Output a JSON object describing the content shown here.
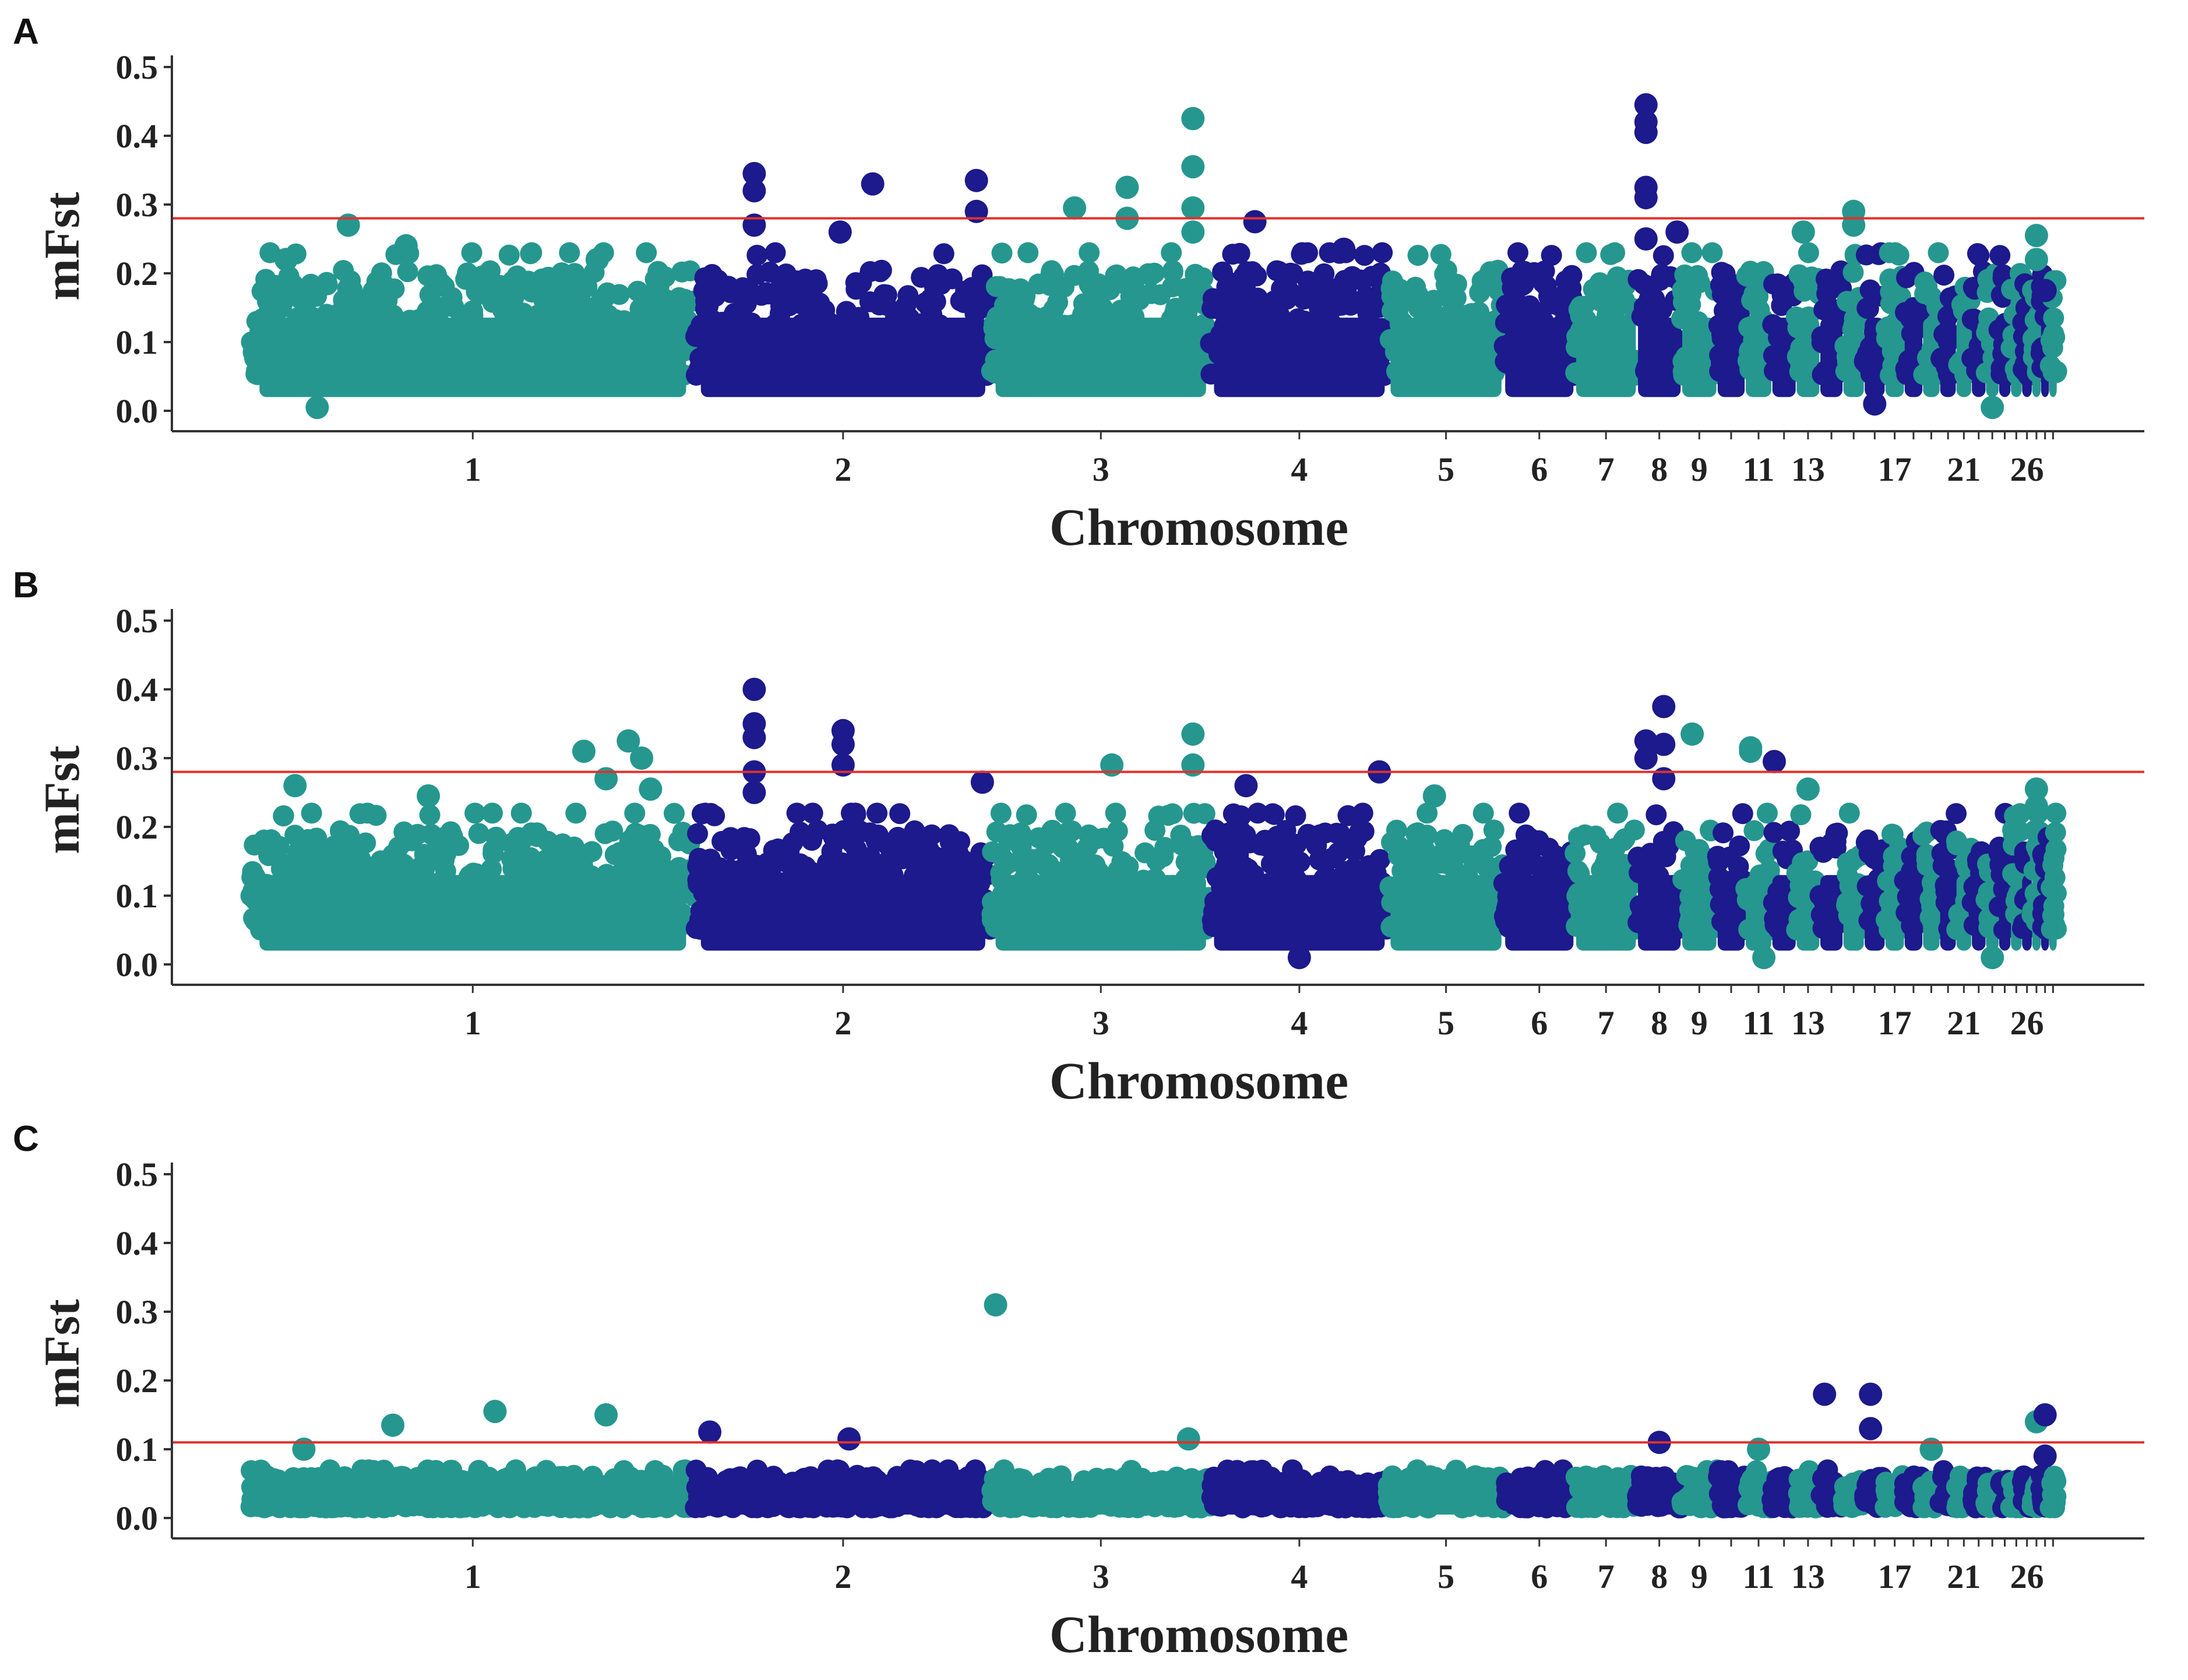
{
  "chart_data": [
    {
      "panel": "A",
      "type": "scatter",
      "subtype": "manhattan",
      "xlabel": "Chromosome",
      "ylabel": "mFst",
      "ylim": [
        0.0,
        0.5
      ],
      "yticks": [
        "0.0",
        "0.1",
        "0.2",
        "0.3",
        "0.4",
        "0.5"
      ],
      "x_tick_labels": [
        "1",
        "2",
        "3",
        "4",
        "5",
        "6",
        "7",
        "8",
        "9",
        "11",
        "13",
        "17",
        "21",
        "26"
      ],
      "threshold": 0.28,
      "band_min": 0.02,
      "band_max": 0.23,
      "colors": [
        "#25978f",
        "#1c1a8c"
      ],
      "threshold_color": "#e0312b",
      "peaks": [
        {
          "chrom": 1,
          "pos": 0.08,
          "y": 0.22
        },
        {
          "chrom": 1,
          "pos": 0.22,
          "y": 0.27
        },
        {
          "chrom": 1,
          "pos": 0.35,
          "y": 0.24
        },
        {
          "chrom": 1,
          "pos": 0.78,
          "y": 0.22
        },
        {
          "chrom": 2,
          "pos": 0.2,
          "y": 0.345
        },
        {
          "chrom": 2,
          "pos": 0.2,
          "y": 0.32
        },
        {
          "chrom": 2,
          "pos": 0.2,
          "y": 0.27
        },
        {
          "chrom": 2,
          "pos": 0.6,
          "y": 0.33
        },
        {
          "chrom": 2,
          "pos": 0.49,
          "y": 0.26
        },
        {
          "chrom": 2,
          "pos": 0.95,
          "y": 0.335
        },
        {
          "chrom": 2,
          "pos": 0.95,
          "y": 0.29
        },
        {
          "chrom": 3,
          "pos": 0.38,
          "y": 0.295
        },
        {
          "chrom": 3,
          "pos": 0.62,
          "y": 0.325
        },
        {
          "chrom": 3,
          "pos": 0.62,
          "y": 0.28
        },
        {
          "chrom": 3,
          "pos": 0.92,
          "y": 0.425
        },
        {
          "chrom": 3,
          "pos": 0.92,
          "y": 0.355
        },
        {
          "chrom": 3,
          "pos": 0.92,
          "y": 0.295
        },
        {
          "chrom": 3,
          "pos": 0.92,
          "y": 0.26
        },
        {
          "chrom": 4,
          "pos": 0.25,
          "y": 0.275
        },
        {
          "chrom": 4,
          "pos": 0.75,
          "y": 0.235
        },
        {
          "chrom": 8,
          "pos": 0.2,
          "y": 0.445
        },
        {
          "chrom": 8,
          "pos": 0.2,
          "y": 0.42
        },
        {
          "chrom": 8,
          "pos": 0.2,
          "y": 0.405
        },
        {
          "chrom": 8,
          "pos": 0.2,
          "y": 0.325
        },
        {
          "chrom": 8,
          "pos": 0.2,
          "y": 0.31
        },
        {
          "chrom": 8,
          "pos": 0.2,
          "y": 0.25
        },
        {
          "chrom": 8,
          "pos": 0.9,
          "y": 0.26
        },
        {
          "chrom": 13,
          "pos": 0.3,
          "y": 0.26
        },
        {
          "chrom": 15,
          "pos": 0.5,
          "y": 0.29
        },
        {
          "chrom": 15,
          "pos": 0.5,
          "y": 0.27
        },
        {
          "chrom": 27,
          "pos": 0.5,
          "y": 0.255
        },
        {
          "chrom": 27,
          "pos": 0.5,
          "y": 0.22
        },
        {
          "chrom": 28,
          "pos": 0.5,
          "y": 0.175
        }
      ],
      "lows": [
        {
          "chrom": 16,
          "pos": 0.5,
          "y": 0.01
        },
        {
          "chrom": 23,
          "pos": 0.5,
          "y": 0.005
        },
        {
          "chrom": 1,
          "pos": 0.15,
          "y": 0.005
        }
      ]
    },
    {
      "panel": "B",
      "type": "scatter",
      "subtype": "manhattan",
      "xlabel": "Chromosome",
      "ylabel": "mFst",
      "ylim": [
        0.0,
        0.5
      ],
      "yticks": [
        "0.0",
        "0.1",
        "0.2",
        "0.3",
        "0.4",
        "0.5"
      ],
      "x_tick_labels": [
        "1",
        "2",
        "3",
        "4",
        "5",
        "6",
        "7",
        "8",
        "9",
        "11",
        "13",
        "17",
        "21",
        "26"
      ],
      "threshold": 0.28,
      "band_min": 0.02,
      "band_max": 0.22,
      "colors": [
        "#25978f",
        "#1c1a8c"
      ],
      "threshold_color": "#e0312b",
      "peaks": [
        {
          "chrom": 1,
          "pos": 0.1,
          "y": 0.26
        },
        {
          "chrom": 1,
          "pos": 0.4,
          "y": 0.245
        },
        {
          "chrom": 1,
          "pos": 0.75,
          "y": 0.31
        },
        {
          "chrom": 1,
          "pos": 0.85,
          "y": 0.325
        },
        {
          "chrom": 1,
          "pos": 0.88,
          "y": 0.3
        },
        {
          "chrom": 1,
          "pos": 0.8,
          "y": 0.27
        },
        {
          "chrom": 1,
          "pos": 0.9,
          "y": 0.255
        },
        {
          "chrom": 2,
          "pos": 0.2,
          "y": 0.4
        },
        {
          "chrom": 2,
          "pos": 0.2,
          "y": 0.35
        },
        {
          "chrom": 2,
          "pos": 0.2,
          "y": 0.33
        },
        {
          "chrom": 2,
          "pos": 0.2,
          "y": 0.28
        },
        {
          "chrom": 2,
          "pos": 0.2,
          "y": 0.25
        },
        {
          "chrom": 2,
          "pos": 0.5,
          "y": 0.34
        },
        {
          "chrom": 2,
          "pos": 0.5,
          "y": 0.32
        },
        {
          "chrom": 2,
          "pos": 0.5,
          "y": 0.29
        },
        {
          "chrom": 2,
          "pos": 0.97,
          "y": 0.265
        },
        {
          "chrom": 3,
          "pos": 0.55,
          "y": 0.29
        },
        {
          "chrom": 3,
          "pos": 0.92,
          "y": 0.335
        },
        {
          "chrom": 3,
          "pos": 0.92,
          "y": 0.29
        },
        {
          "chrom": 4,
          "pos": 0.2,
          "y": 0.26
        },
        {
          "chrom": 4,
          "pos": 0.95,
          "y": 0.28
        },
        {
          "chrom": 5,
          "pos": 0.4,
          "y": 0.245
        },
        {
          "chrom": 8,
          "pos": 0.2,
          "y": 0.325
        },
        {
          "chrom": 8,
          "pos": 0.2,
          "y": 0.3
        },
        {
          "chrom": 8,
          "pos": 0.6,
          "y": 0.375
        },
        {
          "chrom": 8,
          "pos": 0.6,
          "y": 0.32
        },
        {
          "chrom": 8,
          "pos": 0.6,
          "y": 0.27
        },
        {
          "chrom": 9,
          "pos": 0.3,
          "y": 0.335
        },
        {
          "chrom": 11,
          "pos": 0.2,
          "y": 0.315
        },
        {
          "chrom": 11,
          "pos": 0.2,
          "y": 0.31
        },
        {
          "chrom": 12,
          "pos": 0.1,
          "y": 0.295
        },
        {
          "chrom": 13,
          "pos": 0.5,
          "y": 0.255
        },
        {
          "chrom": 27,
          "pos": 0.5,
          "y": 0.255
        },
        {
          "chrom": 27,
          "pos": 0.5,
          "y": 0.23
        }
      ],
      "lows": [
        {
          "chrom": 4,
          "pos": 0.5,
          "y": 0.01
        },
        {
          "chrom": 11,
          "pos": 0.7,
          "y": 0.01
        },
        {
          "chrom": 23,
          "pos": 0.5,
          "y": 0.01
        }
      ]
    },
    {
      "panel": "C",
      "type": "scatter",
      "subtype": "manhattan",
      "xlabel": "Chromosome",
      "ylabel": "mFst",
      "ylim": [
        0.0,
        0.5
      ],
      "yticks": [
        "0.0",
        "0.1",
        "0.2",
        "0.3",
        "0.4",
        "0.5"
      ],
      "x_tick_labels": [
        "1",
        "2",
        "3",
        "4",
        "5",
        "6",
        "7",
        "8",
        "9",
        "11",
        "13",
        "17",
        "21",
        "26"
      ],
      "threshold": 0.11,
      "band_min": 0.005,
      "band_max": 0.07,
      "colors": [
        "#25978f",
        "#1c1a8c"
      ],
      "threshold_color": "#e0312b",
      "peaks": [
        {
          "chrom": 1,
          "pos": 0.12,
          "y": 0.1
        },
        {
          "chrom": 1,
          "pos": 0.32,
          "y": 0.135
        },
        {
          "chrom": 1,
          "pos": 0.55,
          "y": 0.155
        },
        {
          "chrom": 1,
          "pos": 0.8,
          "y": 0.15
        },
        {
          "chrom": 2,
          "pos": 0.05,
          "y": 0.125
        },
        {
          "chrom": 2,
          "pos": 0.52,
          "y": 0.115
        },
        {
          "chrom": 3,
          "pos": 0.02,
          "y": 0.31
        },
        {
          "chrom": 3,
          "pos": 0.9,
          "y": 0.115
        },
        {
          "chrom": 8,
          "pos": 0.5,
          "y": 0.11
        },
        {
          "chrom": 11,
          "pos": 0.5,
          "y": 0.1
        },
        {
          "chrom": 14,
          "pos": 0.2,
          "y": 0.18
        },
        {
          "chrom": 16,
          "pos": 0.3,
          "y": 0.18
        },
        {
          "chrom": 16,
          "pos": 0.3,
          "y": 0.13
        },
        {
          "chrom": 19,
          "pos": 0.5,
          "y": 0.1
        },
        {
          "chrom": 27,
          "pos": 0.5,
          "y": 0.14
        },
        {
          "chrom": 28,
          "pos": 0.5,
          "y": 0.15
        },
        {
          "chrom": 28,
          "pos": 0.5,
          "y": 0.09
        }
      ],
      "lows": []
    }
  ],
  "chromosomes": {
    "count": 29,
    "relative_lengths": [
      1500,
      1000,
      740,
      600,
      390,
      240,
      210,
      150,
      120,
      95,
      90,
      82,
      80,
      78,
      72,
      70,
      65,
      62,
      58,
      55,
      52,
      48,
      44,
      40,
      38,
      34,
      30,
      28,
      26
    ],
    "labeled": [
      "1",
      "2",
      "3",
      "4",
      "5",
      "6",
      "7",
      "8",
      "9",
      "11",
      "13",
      "17",
      "21",
      "26"
    ]
  }
}
